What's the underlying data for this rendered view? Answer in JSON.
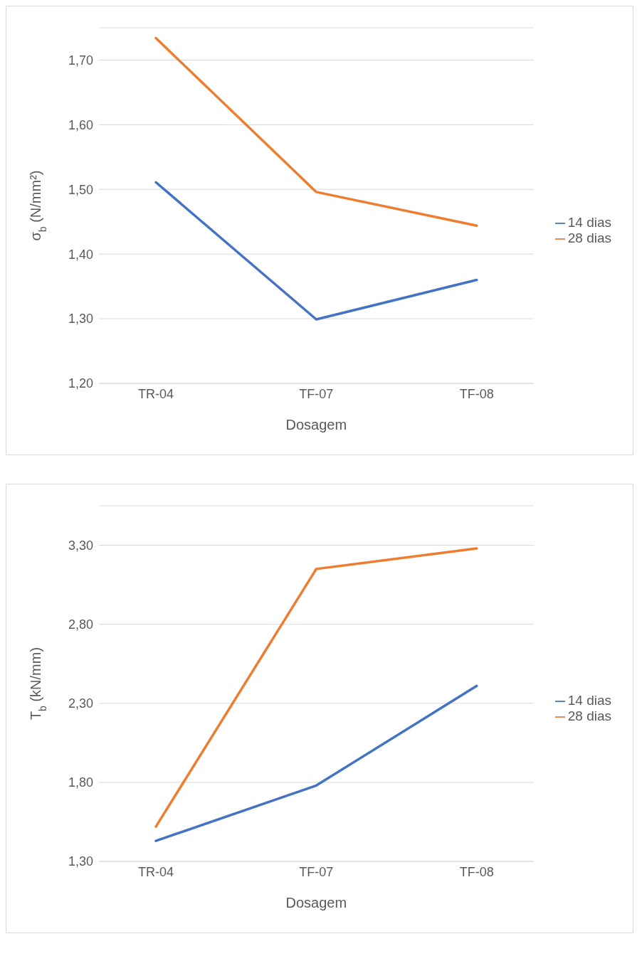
{
  "chart_data": [
    {
      "type": "line",
      "xlabel": "Dosagem",
      "ylabel": "σ$_{b}$ (N/mm²)",
      "categories": [
        "TR-04",
        "TF-07",
        "TF-08"
      ],
      "series": [
        {
          "name": "14 dias",
          "color": "#4472c4",
          "values": [
            1.511,
            1.299,
            1.36
          ]
        },
        {
          "name": "28 dias",
          "color": "#ed7d31",
          "values": [
            1.734,
            1.496,
            1.444
          ]
        }
      ],
      "ylim": [
        1.2,
        1.75
      ],
      "yticks": [
        {
          "value": 1.2,
          "label": "1,20"
        },
        {
          "value": 1.3,
          "label": "1,30"
        },
        {
          "value": 1.4,
          "label": "1,40"
        },
        {
          "value": 1.5,
          "label": "1,50"
        },
        {
          "value": 1.6,
          "label": "1,60"
        },
        {
          "value": 1.7,
          "label": "1,70"
        }
      ],
      "grid": "y",
      "legend": "right",
      "marker": "none",
      "line_style": "solid"
    },
    {
      "type": "line",
      "xlabel": "Dosagem",
      "ylabel": "T$_{b}$ (kN/mm)",
      "categories": [
        "TR-04",
        "TF-07",
        "TF-08"
      ],
      "series": [
        {
          "name": "14 dias",
          "color": "#4472c4",
          "values": [
            1.43,
            1.78,
            2.41
          ]
        },
        {
          "name": "28 dias",
          "color": "#ed7d31",
          "values": [
            1.52,
            3.15,
            3.28
          ]
        }
      ],
      "ylim": [
        1.3,
        3.55
      ],
      "yticks": [
        {
          "value": 1.3,
          "label": "1,30"
        },
        {
          "value": 1.8,
          "label": "1,80"
        },
        {
          "value": 2.3,
          "label": "2,30"
        },
        {
          "value": 2.8,
          "label": "2,80"
        },
        {
          "value": 3.3,
          "label": "3,30"
        }
      ],
      "grid": "y",
      "legend": "right",
      "marker": "none",
      "line_style": "solid"
    }
  ]
}
